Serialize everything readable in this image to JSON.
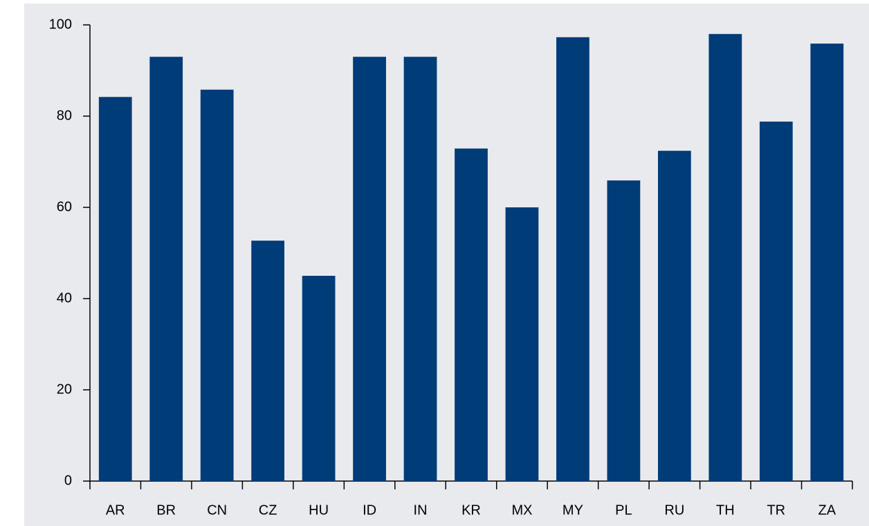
{
  "chart_data": {
    "type": "bar",
    "categories": [
      "AR",
      "BR",
      "CN",
      "CZ",
      "HU",
      "ID",
      "IN",
      "KR",
      "MX",
      "MY",
      "PL",
      "RU",
      "TH",
      "TR",
      "ZA"
    ],
    "values": [
      84.2,
      93.0,
      85.8,
      52.7,
      45.0,
      93.0,
      93.0,
      72.9,
      60.0,
      97.3,
      65.9,
      72.4,
      98.0,
      78.8,
      95.9
    ],
    "color": "#003c78",
    "ylim": [
      0,
      100
    ],
    "yticks": [
      0,
      20,
      40,
      60,
      80,
      100
    ],
    "grid": false
  }
}
